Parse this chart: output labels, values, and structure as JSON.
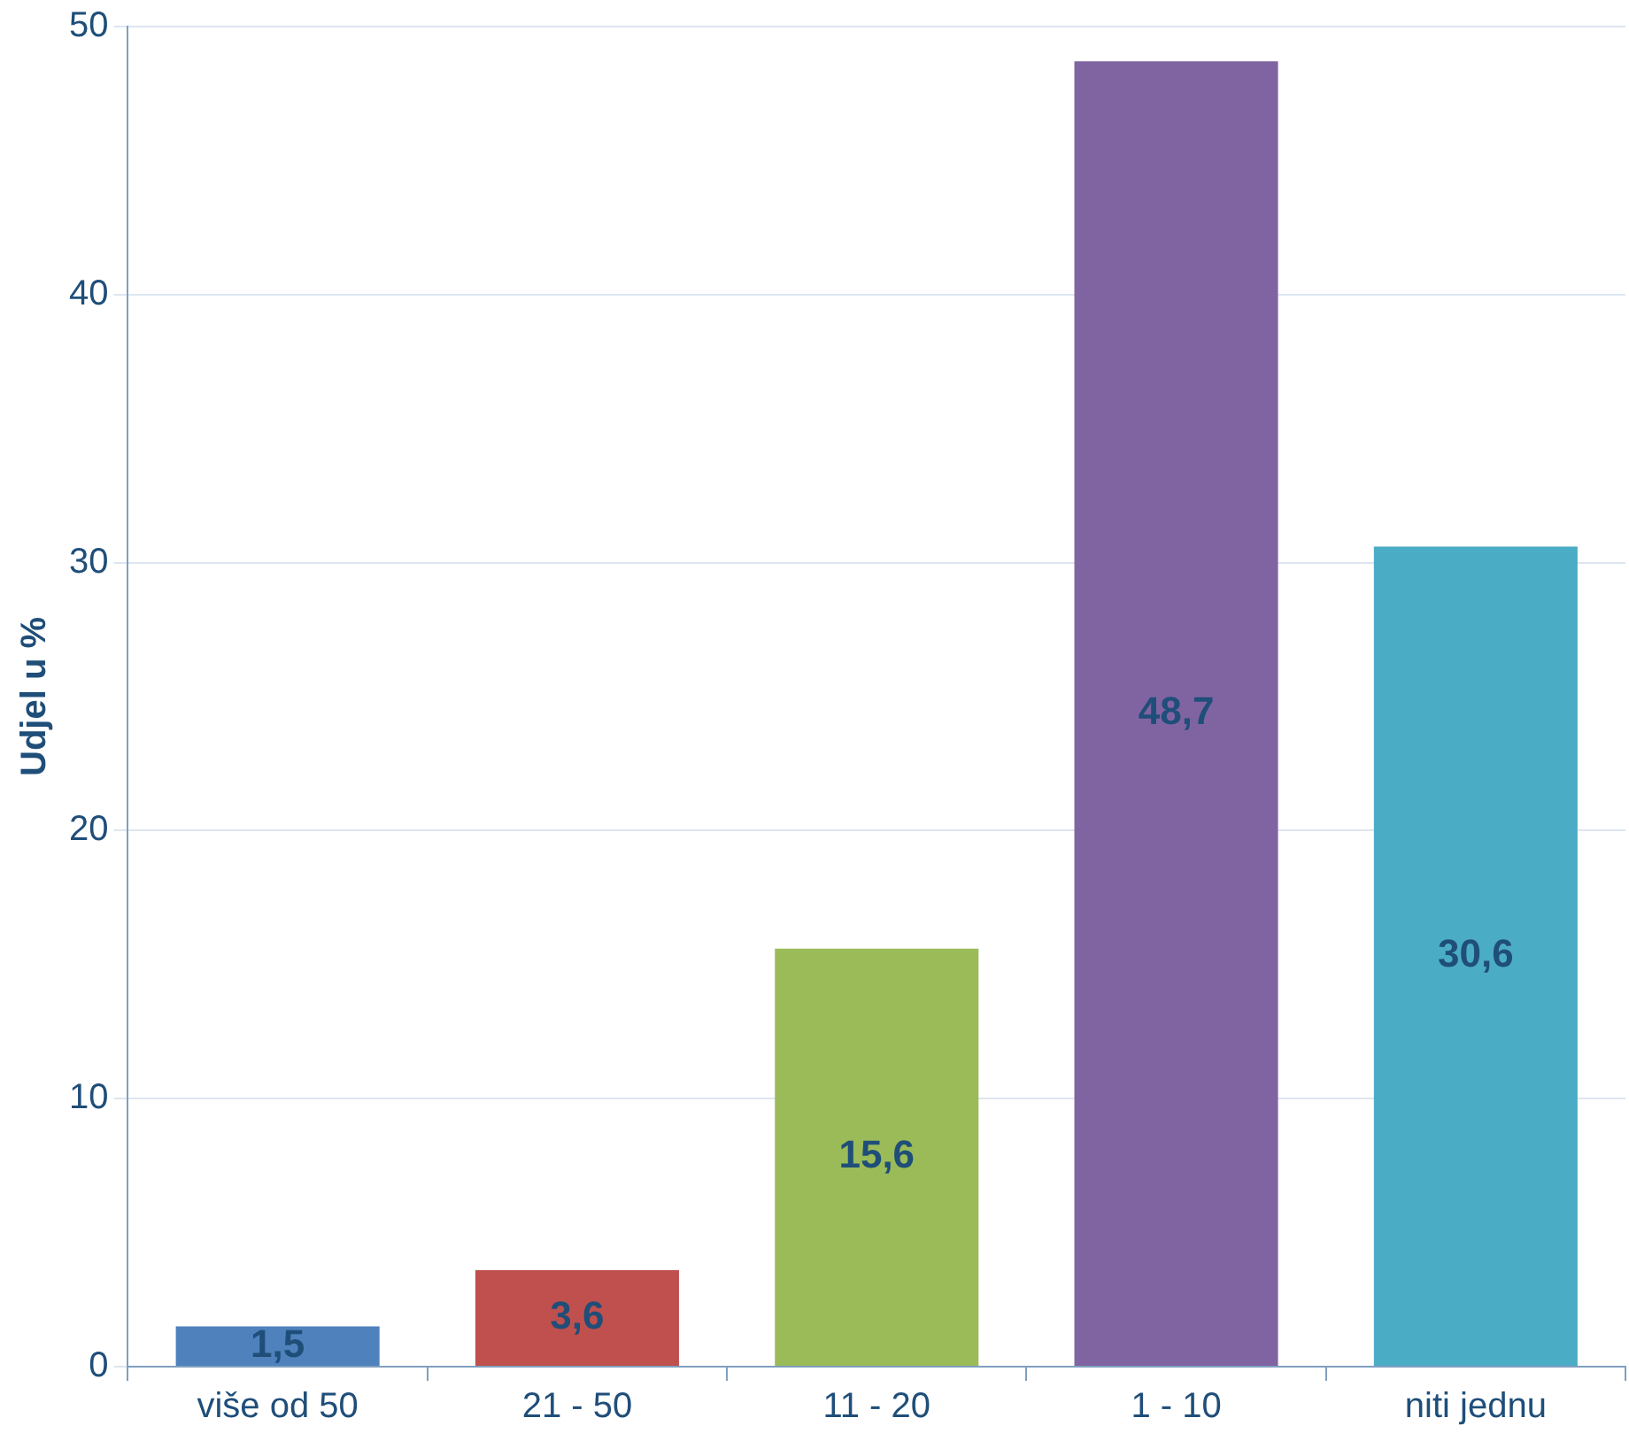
{
  "chart_data": {
    "type": "bar",
    "ylabel": "Udjel u %",
    "categories": [
      "više od 50",
      "21 - 50",
      "11 - 20",
      "1 - 10",
      "niti jednu"
    ],
    "values": [
      1.5,
      3.6,
      15.6,
      48.7,
      30.6
    ],
    "colors": [
      "#4f81bd",
      "#c0504d",
      "#9bbb59",
      "#8064a2",
      "#4bacc6"
    ],
    "value_labels": [
      "1,5",
      "3,6",
      "15,6",
      "48,7",
      "30,6"
    ],
    "ylim": [
      0,
      50
    ],
    "yticks": [
      0,
      10,
      20,
      30,
      40,
      50
    ],
    "grid": "y",
    "legend": false
  }
}
